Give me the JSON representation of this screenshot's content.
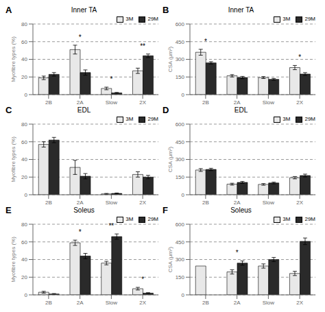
{
  "chart_data": [
    {
      "type": "bar",
      "title": "Inner TA",
      "ylabel": "Myofibre types (%)",
      "categories": [
        "2B",
        "2A",
        "Slow",
        "2X"
      ],
      "series": [
        {
          "name": "3M",
          "color": "#e8e8e8",
          "values": [
            19,
            51,
            7,
            27
          ],
          "errors": [
            2,
            5,
            1.5,
            3
          ]
        },
        {
          "name": "29M",
          "color": "#2a2a2a",
          "values": [
            23,
            25,
            2,
            44
          ],
          "errors": [
            2,
            3,
            0.5,
            2
          ]
        }
      ],
      "ylim": [
        0,
        80
      ],
      "yticks": [
        0,
        20,
        40,
        60,
        80
      ],
      "grid": true,
      "legend": "upper right",
      "annotations": [
        {
          "text": "A"
        },
        {
          "category": "2A",
          "text": "*"
        },
        {
          "category": "Slow",
          "text": "*"
        },
        {
          "category": "2X",
          "text": "**"
        }
      ]
    },
    {
      "type": "bar",
      "title": "Inner TA",
      "ylabel": "CSA (μm²)",
      "categories": [
        "2B",
        "2A",
        "Slow",
        "2X"
      ],
      "series": [
        {
          "name": "3M",
          "color": "#e8e8e8",
          "values": [
            360,
            160,
            145,
            230
          ],
          "errors": [
            25,
            10,
            8,
            18
          ]
        },
        {
          "name": "29M",
          "color": "#2a2a2a",
          "values": [
            270,
            145,
            130,
            175
          ],
          "errors": [
            10,
            10,
            8,
            12
          ]
        }
      ],
      "ylim": [
        0,
        600
      ],
      "yticks": [
        0,
        150,
        300,
        450,
        600
      ],
      "grid": true,
      "legend": "upper right",
      "annotations": [
        {
          "text": "B"
        },
        {
          "category": "2B",
          "text": "*"
        },
        {
          "category": "2X",
          "text": "*"
        }
      ]
    },
    {
      "type": "bar",
      "title": "EDL",
      "ylabel": "Myofibre types (%)",
      "categories": [
        "2B",
        "2A",
        "Slow",
        "2X"
      ],
      "series": [
        {
          "name": "3M",
          "color": "#e8e8e8",
          "values": [
            57,
            31,
            1,
            23
          ],
          "errors": [
            3,
            8,
            0.5,
            3
          ]
        },
        {
          "name": "29M",
          "color": "#2a2a2a",
          "values": [
            62,
            21,
            1.5,
            20
          ],
          "errors": [
            3,
            3,
            0.5,
            2
          ]
        }
      ],
      "ylim": [
        0,
        80
      ],
      "yticks": [
        0,
        20,
        40,
        60,
        80
      ],
      "grid": true,
      "legend": "upper right",
      "annotations": [
        {
          "text": "C"
        }
      ]
    },
    {
      "type": "bar",
      "title": "EDL",
      "ylabel": "CSA (μm²)",
      "categories": [
        "2B",
        "2A",
        "Slow",
        "2X"
      ],
      "series": [
        {
          "name": "3M",
          "color": "#e8e8e8",
          "values": [
            210,
            90,
            88,
            145
          ],
          "errors": [
            12,
            8,
            7,
            10
          ]
        },
        {
          "name": "29M",
          "color": "#2a2a2a",
          "values": [
            215,
            105,
            100,
            163
          ],
          "errors": [
            10,
            8,
            7,
            12
          ]
        }
      ],
      "ylim": [
        0,
        600
      ],
      "yticks": [
        0,
        150,
        300,
        450,
        600
      ],
      "grid": true,
      "legend": "upper right",
      "annotations": [
        {
          "text": "D"
        }
      ]
    },
    {
      "type": "bar",
      "title": "Soleus",
      "ylabel": "Myofibre types (%)",
      "categories": [
        "2B",
        "2A",
        "Slow",
        "2X"
      ],
      "series": [
        {
          "name": "3M",
          "color": "#e8e8e8",
          "values": [
            3,
            59,
            36,
            7
          ],
          "errors": [
            1,
            3,
            2,
            1.5
          ]
        },
        {
          "name": "29M",
          "color": "#2a2a2a",
          "values": [
            1,
            44,
            66,
            2
          ],
          "errors": [
            0.5,
            3,
            3,
            0.5
          ]
        }
      ],
      "ylim": [
        0,
        80
      ],
      "yticks": [
        0,
        20,
        40,
        60,
        80
      ],
      "grid": true,
      "legend": "upper right",
      "annotations": [
        {
          "text": "E"
        },
        {
          "category": "2A",
          "text": "*"
        },
        {
          "category": "Slow",
          "text": "**"
        },
        {
          "category": "2X",
          "text": "*"
        }
      ]
    },
    {
      "type": "bar",
      "title": "Soleus",
      "ylabel": "CSA (μm²)",
      "categories": [
        "2B",
        "2A",
        "Slow",
        "2X"
      ],
      "series": [
        {
          "name": "3M",
          "color": "#e8e8e8",
          "values": [
            245,
            195,
            245,
            182
          ],
          "errors": [
            0,
            18,
            18,
            18
          ]
        },
        {
          "name": "29M",
          "color": "#2a2a2a",
          "values": [
            0,
            270,
            300,
            455
          ],
          "errors": [
            0,
            18,
            18,
            28
          ]
        }
      ],
      "ylim": [
        0,
        600
      ],
      "yticks": [
        0,
        150,
        300,
        450,
        600
      ],
      "grid": true,
      "legend": "upper right",
      "annotations": [
        {
          "text": "F"
        },
        {
          "category": "2A",
          "text": "*"
        }
      ]
    }
  ]
}
